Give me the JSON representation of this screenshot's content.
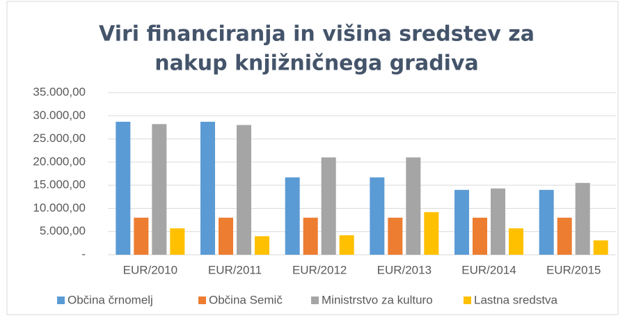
{
  "chart_data": {
    "type": "bar",
    "title": [
      "Viri financiranja  in višina sredstev za",
      "nakup knjižničnega gradiva"
    ],
    "categories": [
      "EUR/2010",
      "EUR/2011",
      "EUR/2012",
      "EUR/2013",
      "EUR/2014",
      "EUR/2015"
    ],
    "series": [
      {
        "name": "Občina črnomelj",
        "color": "#5b9bd5",
        "values": [
          28700,
          28700,
          16700,
          16700,
          14000,
          14000
        ]
      },
      {
        "name": "Občina Semič",
        "color": "#ed7d31",
        "values": [
          8000,
          8000,
          8000,
          8000,
          8000,
          8000
        ]
      },
      {
        "name": "Ministrstvo za kulturo",
        "color": "#a5a5a5",
        "values": [
          28200,
          28000,
          21000,
          21000,
          14300,
          15500
        ]
      },
      {
        "name": "Lastna sredstva",
        "color": "#ffc000",
        "values": [
          5700,
          4000,
          4200,
          9200,
          5700,
          3100
        ]
      }
    ],
    "ylim": [
      0,
      35000
    ],
    "yticks": [
      {
        "value": 0,
        "label": "-"
      },
      {
        "value": 5000,
        "label": "5.000,00"
      },
      {
        "value": 10000,
        "label": "10.000,00"
      },
      {
        "value": 15000,
        "label": "15.000,00"
      },
      {
        "value": 20000,
        "label": "20.000,00"
      },
      {
        "value": 25000,
        "label": "25.000,00"
      },
      {
        "value": 30000,
        "label": "30.000,00"
      },
      {
        "value": 35000,
        "label": "35.000,00"
      }
    ],
    "grid": true,
    "legend": "bottom"
  }
}
